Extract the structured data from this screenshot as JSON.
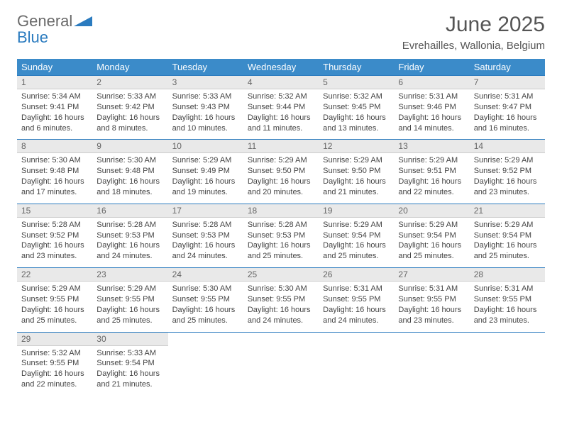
{
  "brand": {
    "part1": "General",
    "part2": "Blue"
  },
  "title": "June 2025",
  "location": "Evrehailles, Wallonia, Belgium",
  "colors": {
    "header_bg": "#3b8bc9",
    "header_text": "#ffffff",
    "daynum_bg": "#e9e9e9",
    "day_border": "#2b7bbf",
    "text": "#444444",
    "title_color": "#555555"
  },
  "weekdays": [
    "Sunday",
    "Monday",
    "Tuesday",
    "Wednesday",
    "Thursday",
    "Friday",
    "Saturday"
  ],
  "weeks": [
    [
      {
        "n": "1",
        "sr": "5:34 AM",
        "ss": "9:41 PM",
        "dl": "16 hours and 6 minutes."
      },
      {
        "n": "2",
        "sr": "5:33 AM",
        "ss": "9:42 PM",
        "dl": "16 hours and 8 minutes."
      },
      {
        "n": "3",
        "sr": "5:33 AM",
        "ss": "9:43 PM",
        "dl": "16 hours and 10 minutes."
      },
      {
        "n": "4",
        "sr": "5:32 AM",
        "ss": "9:44 PM",
        "dl": "16 hours and 11 minutes."
      },
      {
        "n": "5",
        "sr": "5:32 AM",
        "ss": "9:45 PM",
        "dl": "16 hours and 13 minutes."
      },
      {
        "n": "6",
        "sr": "5:31 AM",
        "ss": "9:46 PM",
        "dl": "16 hours and 14 minutes."
      },
      {
        "n": "7",
        "sr": "5:31 AM",
        "ss": "9:47 PM",
        "dl": "16 hours and 16 minutes."
      }
    ],
    [
      {
        "n": "8",
        "sr": "5:30 AM",
        "ss": "9:48 PM",
        "dl": "16 hours and 17 minutes."
      },
      {
        "n": "9",
        "sr": "5:30 AM",
        "ss": "9:48 PM",
        "dl": "16 hours and 18 minutes."
      },
      {
        "n": "10",
        "sr": "5:29 AM",
        "ss": "9:49 PM",
        "dl": "16 hours and 19 minutes."
      },
      {
        "n": "11",
        "sr": "5:29 AM",
        "ss": "9:50 PM",
        "dl": "16 hours and 20 minutes."
      },
      {
        "n": "12",
        "sr": "5:29 AM",
        "ss": "9:50 PM",
        "dl": "16 hours and 21 minutes."
      },
      {
        "n": "13",
        "sr": "5:29 AM",
        "ss": "9:51 PM",
        "dl": "16 hours and 22 minutes."
      },
      {
        "n": "14",
        "sr": "5:29 AM",
        "ss": "9:52 PM",
        "dl": "16 hours and 23 minutes."
      }
    ],
    [
      {
        "n": "15",
        "sr": "5:28 AM",
        "ss": "9:52 PM",
        "dl": "16 hours and 23 minutes."
      },
      {
        "n": "16",
        "sr": "5:28 AM",
        "ss": "9:53 PM",
        "dl": "16 hours and 24 minutes."
      },
      {
        "n": "17",
        "sr": "5:28 AM",
        "ss": "9:53 PM",
        "dl": "16 hours and 24 minutes."
      },
      {
        "n": "18",
        "sr": "5:28 AM",
        "ss": "9:53 PM",
        "dl": "16 hours and 25 minutes."
      },
      {
        "n": "19",
        "sr": "5:29 AM",
        "ss": "9:54 PM",
        "dl": "16 hours and 25 minutes."
      },
      {
        "n": "20",
        "sr": "5:29 AM",
        "ss": "9:54 PM",
        "dl": "16 hours and 25 minutes."
      },
      {
        "n": "21",
        "sr": "5:29 AM",
        "ss": "9:54 PM",
        "dl": "16 hours and 25 minutes."
      }
    ],
    [
      {
        "n": "22",
        "sr": "5:29 AM",
        "ss": "9:55 PM",
        "dl": "16 hours and 25 minutes."
      },
      {
        "n": "23",
        "sr": "5:29 AM",
        "ss": "9:55 PM",
        "dl": "16 hours and 25 minutes."
      },
      {
        "n": "24",
        "sr": "5:30 AM",
        "ss": "9:55 PM",
        "dl": "16 hours and 25 minutes."
      },
      {
        "n": "25",
        "sr": "5:30 AM",
        "ss": "9:55 PM",
        "dl": "16 hours and 24 minutes."
      },
      {
        "n": "26",
        "sr": "5:31 AM",
        "ss": "9:55 PM",
        "dl": "16 hours and 24 minutes."
      },
      {
        "n": "27",
        "sr": "5:31 AM",
        "ss": "9:55 PM",
        "dl": "16 hours and 23 minutes."
      },
      {
        "n": "28",
        "sr": "5:31 AM",
        "ss": "9:55 PM",
        "dl": "16 hours and 23 minutes."
      }
    ],
    [
      {
        "n": "29",
        "sr": "5:32 AM",
        "ss": "9:55 PM",
        "dl": "16 hours and 22 minutes."
      },
      {
        "n": "30",
        "sr": "5:33 AM",
        "ss": "9:54 PM",
        "dl": "16 hours and 21 minutes."
      },
      null,
      null,
      null,
      null,
      null
    ]
  ],
  "labels": {
    "sunrise": "Sunrise: ",
    "sunset": "Sunset: ",
    "daylight": "Daylight: "
  }
}
